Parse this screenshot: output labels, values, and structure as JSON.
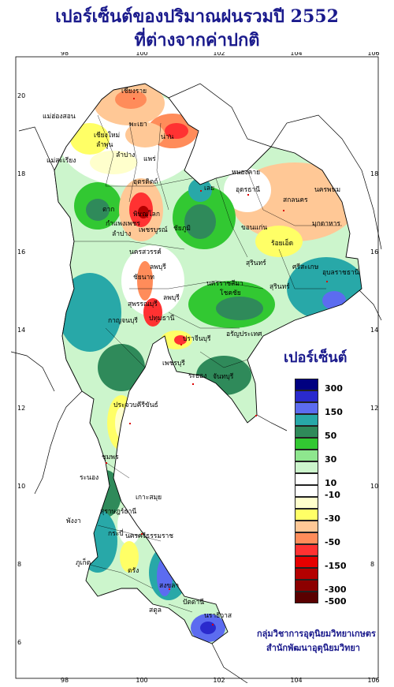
{
  "title_line1": "เปอร์เซ็นต์ของปริมาณฝนรวมปี  2552",
  "title_line2": "ที่ต่างจากค่าปกติ",
  "legend_title": "เปอร์เซ็นต์",
  "legend": [
    {
      "color": "#000080",
      "label": "300"
    },
    {
      "color": "#2a2acd",
      "label": ""
    },
    {
      "color": "#5c6cf0",
      "label": "150"
    },
    {
      "color": "#28a8a8",
      "label": ""
    },
    {
      "color": "#2f8a5a",
      "label": "50"
    },
    {
      "color": "#32c832",
      "label": ""
    },
    {
      "color": "#8ee68e",
      "label": "30"
    },
    {
      "color": "#ccf5cc",
      "label": ""
    },
    {
      "color": "#ffffff",
      "label": "10"
    },
    {
      "color": "#ffffff",
      "label": "-10"
    },
    {
      "color": "#ffffcc",
      "label": ""
    },
    {
      "color": "#ffff66",
      "label": "-30"
    },
    {
      "color": "#ffc896",
      "label": ""
    },
    {
      "color": "#ff8c5a",
      "label": "-50"
    },
    {
      "color": "#ff3232",
      "label": ""
    },
    {
      "color": "#e60000",
      "label": "-150"
    },
    {
      "color": "#b40000",
      "label": ""
    },
    {
      "color": "#8c0000",
      "label": "-300"
    },
    {
      "color": "#5a0000",
      "label": "-500"
    }
  ],
  "lon_ticks": [
    "98",
    "100",
    "102",
    "104",
    "106"
  ],
  "lat_ticks": [
    "20",
    "18",
    "16",
    "14",
    "12",
    "10",
    "8",
    "6"
  ],
  "places": [
    {
      "name": "เชียงราย"
    },
    {
      "name": "แม่ฮ่องสอน"
    },
    {
      "name": "เชียงใหม่"
    },
    {
      "name": "พะเยา"
    },
    {
      "name": "น่าน"
    },
    {
      "name": "ลำพูน"
    },
    {
      "name": "ลำปาง"
    },
    {
      "name": "แพร่"
    },
    {
      "name": "แม่สะเรียง"
    },
    {
      "name": "อุตรดิตถ์"
    },
    {
      "name": "ตาก"
    },
    {
      "name": "พิษณุโลก"
    },
    {
      "name": "กำแพงเพชร"
    },
    {
      "name": "เพชรบูรณ์"
    },
    {
      "name": "นครสวรรค์"
    },
    {
      "name": "เลย"
    },
    {
      "name": "หนองคาย"
    },
    {
      "name": "อุดรธานี"
    },
    {
      "name": "นครพนม"
    },
    {
      "name": "สกลนคร"
    },
    {
      "name": "มุกดาหาร"
    },
    {
      "name": "ขอนแก่น"
    },
    {
      "name": "ชัยภูมิ"
    },
    {
      "name": "นครราชสีมา"
    },
    {
      "name": "ร้อยเอ็ด"
    },
    {
      "name": "อุบลราชธานี"
    },
    {
      "name": "สุรินทร์"
    },
    {
      "name": "ลพบุรี"
    },
    {
      "name": "สุพรรณบุรี"
    },
    {
      "name": "กาญจนบุรี"
    },
    {
      "name": "ปทุมธานี"
    },
    {
      "name": "ปราจีนบุรี"
    },
    {
      "name": "โชคชัย"
    },
    {
      "name": "อรัญประเทศ"
    },
    {
      "name": "เพชรบุรี"
    },
    {
      "name": "ระยอง"
    },
    {
      "name": "จันทบุรี"
    },
    {
      "name": "ประจวบคีรีขันธ์"
    },
    {
      "name": "ชุมพร"
    },
    {
      "name": "ระนอง"
    },
    {
      "name": "เกาะสมุย"
    },
    {
      "name": "สุราษฎร์ธานี"
    },
    {
      "name": "นครศรีธรรมราช"
    },
    {
      "name": "พังงา"
    },
    {
      "name": "ภูเก็ต"
    },
    {
      "name": "กระบี่"
    },
    {
      "name": "ตรัง"
    },
    {
      "name": "สงขลา"
    },
    {
      "name": "ปัตตานี"
    },
    {
      "name": "นราธิวาส"
    },
    {
      "name": "สตูล"
    },
    {
      "name": "ลำปาง"
    },
    {
      "name": "สุรินทร์"
    },
    {
      "name": "ชัยนาท"
    },
    {
      "name": "ลพบุรี"
    },
    {
      "name": "ศรีสะเกษ"
    }
  ],
  "credit_line1": "กลุ่มวิชาการอุตุนิยมวิทยาเกษตร",
  "credit_line2": "สำนักพัฒนาอุตุนิยมวิทยา"
}
